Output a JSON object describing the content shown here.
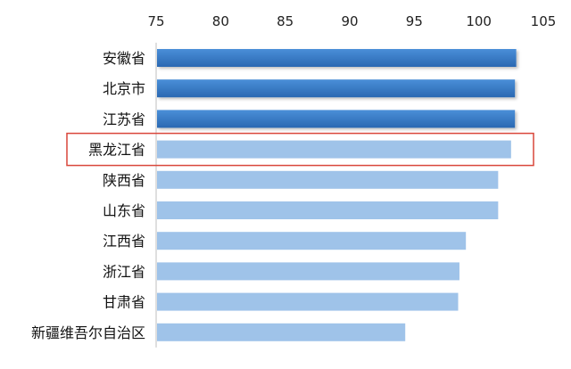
{
  "chart_data": {
    "type": "bar",
    "orientation": "horizontal",
    "categories": [
      "安徽省",
      "北京市",
      "江苏省",
      "黑龙江省",
      "陕西省",
      "山东省",
      "江西省",
      "浙江省",
      "甘肃省",
      "新疆维吾尔自治区"
    ],
    "values": [
      102.9,
      102.8,
      102.8,
      102.5,
      101.5,
      101.5,
      99.0,
      98.5,
      98.4,
      94.3
    ],
    "xlim": [
      75,
      105
    ],
    "x_ticks": [
      "75",
      "80",
      "85",
      "90",
      "95",
      "100",
      "105"
    ],
    "x_axis_position": "top",
    "highlighted_category": "黑龙江省",
    "title": "",
    "xlabel": "",
    "ylabel": "",
    "grid": false,
    "legend": "none",
    "colors": {
      "top_bar_dark": "#2e72be",
      "top_bar_light": "#4a8fd8",
      "bar": "#9fc3e9",
      "highlight_border": "#d9463a",
      "axis_line": "#bfbfbf"
    }
  }
}
